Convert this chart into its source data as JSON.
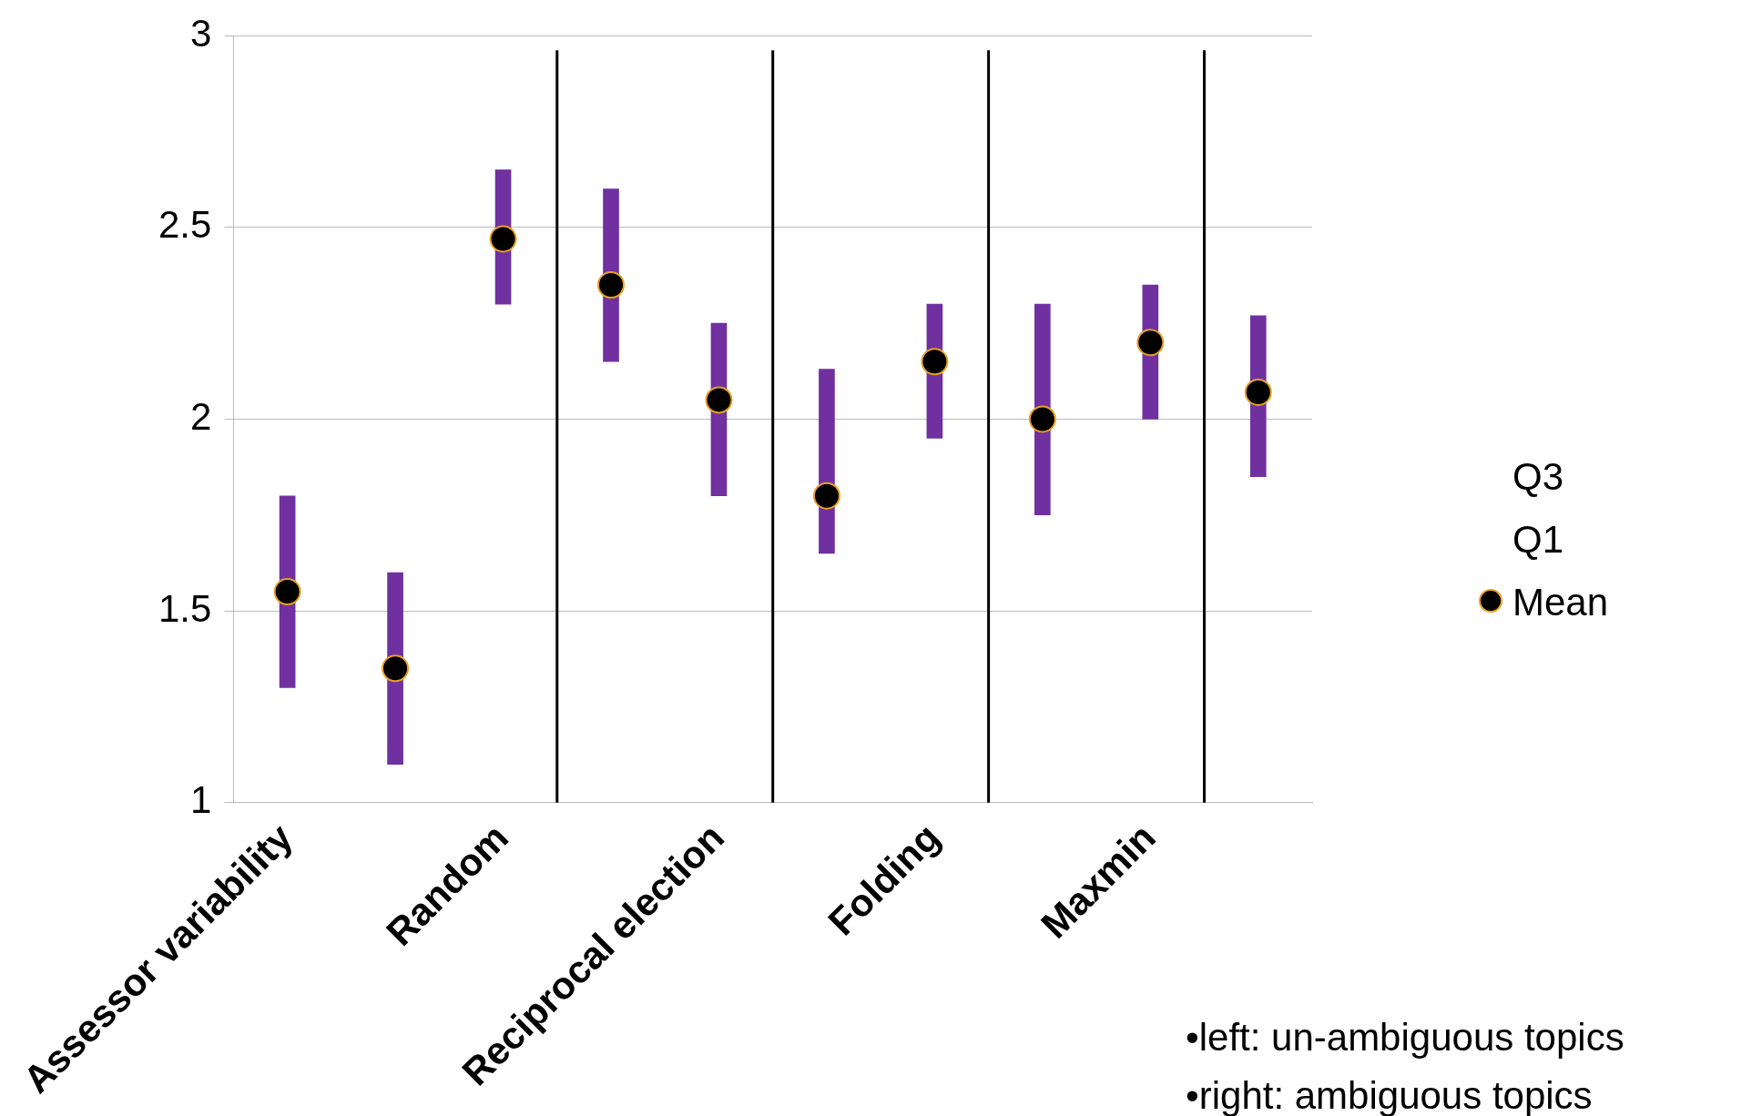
{
  "chart_data": {
    "type": "bar",
    "categories": [
      "Assessor variability",
      null,
      "Random",
      null,
      "Reciprocal election",
      null,
      "Folding",
      null,
      "Maxmin",
      null
    ],
    "series": [
      {
        "color": "#7030a0",
        "base": [
          1.3,
          1.1,
          2.3,
          2.15,
          1.8,
          1.65,
          1.95,
          1.75,
          2.0,
          1.85
        ],
        "values": [
          0.5,
          0.5,
          0.35,
          0.45,
          0.45,
          0.48,
          0.35,
          0.55,
          0.35,
          0.42
        ]
      },
      {
        "name": "Mean",
        "type": "scatter",
        "marker": "circle",
        "color": "#000000",
        "values": [
          1.55,
          1.35,
          2.47,
          2.35,
          2.05,
          1.8,
          2.15,
          2.0,
          2.2,
          2.07
        ]
      }
    ],
    "ylim": [
      1,
      3
    ],
    "yticks": [
      1,
      1.5,
      2,
      2.5,
      3
    ],
    "grid": "y",
    "legend": "right",
    "annotations": [
      "Q3",
      "Q1",
      "•left: un-ambiguous topics",
      "•right: ambiguous topics"
    ]
  }
}
